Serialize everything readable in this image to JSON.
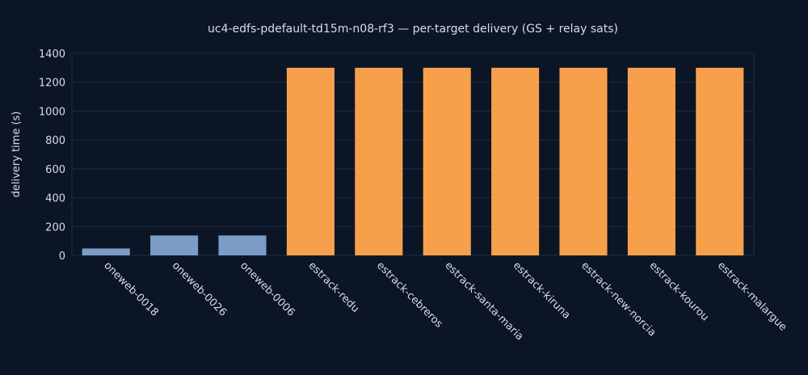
{
  "chart_data": {
    "type": "bar",
    "title": "uc4-edfs-pdefault-td15m-n08-rf3 — per-target delivery (GS + relay sats)",
    "xlabel": "",
    "ylabel": "delivery time (s)",
    "ylim": [
      0,
      1400
    ],
    "yticks": [
      0,
      200,
      400,
      600,
      800,
      1000,
      1200,
      1400
    ],
    "grid": true,
    "legend": "none",
    "categories": [
      "oneweb-0018",
      "oneweb-0026",
      "oneweb-0006",
      "estrack-redu",
      "estrack-cebreros",
      "estrack-santa-maria",
      "estrack-kiruna",
      "estrack-new-norcia",
      "estrack-kourou",
      "estrack-malargue"
    ],
    "values": [
      48,
      138,
      138,
      1300,
      1300,
      1300,
      1300,
      1300,
      1300,
      1300
    ],
    "bar_colors": [
      "#7a9cc6",
      "#7a9cc6",
      "#7a9cc6",
      "#f7a04b",
      "#f7a04b",
      "#f7a04b",
      "#f7a04b",
      "#f7a04b",
      "#f7a04b",
      "#f7a04b"
    ],
    "colors": {
      "background": "#0b1526",
      "grid": "#1f2b3f",
      "text": "#d7dde8"
    }
  }
}
